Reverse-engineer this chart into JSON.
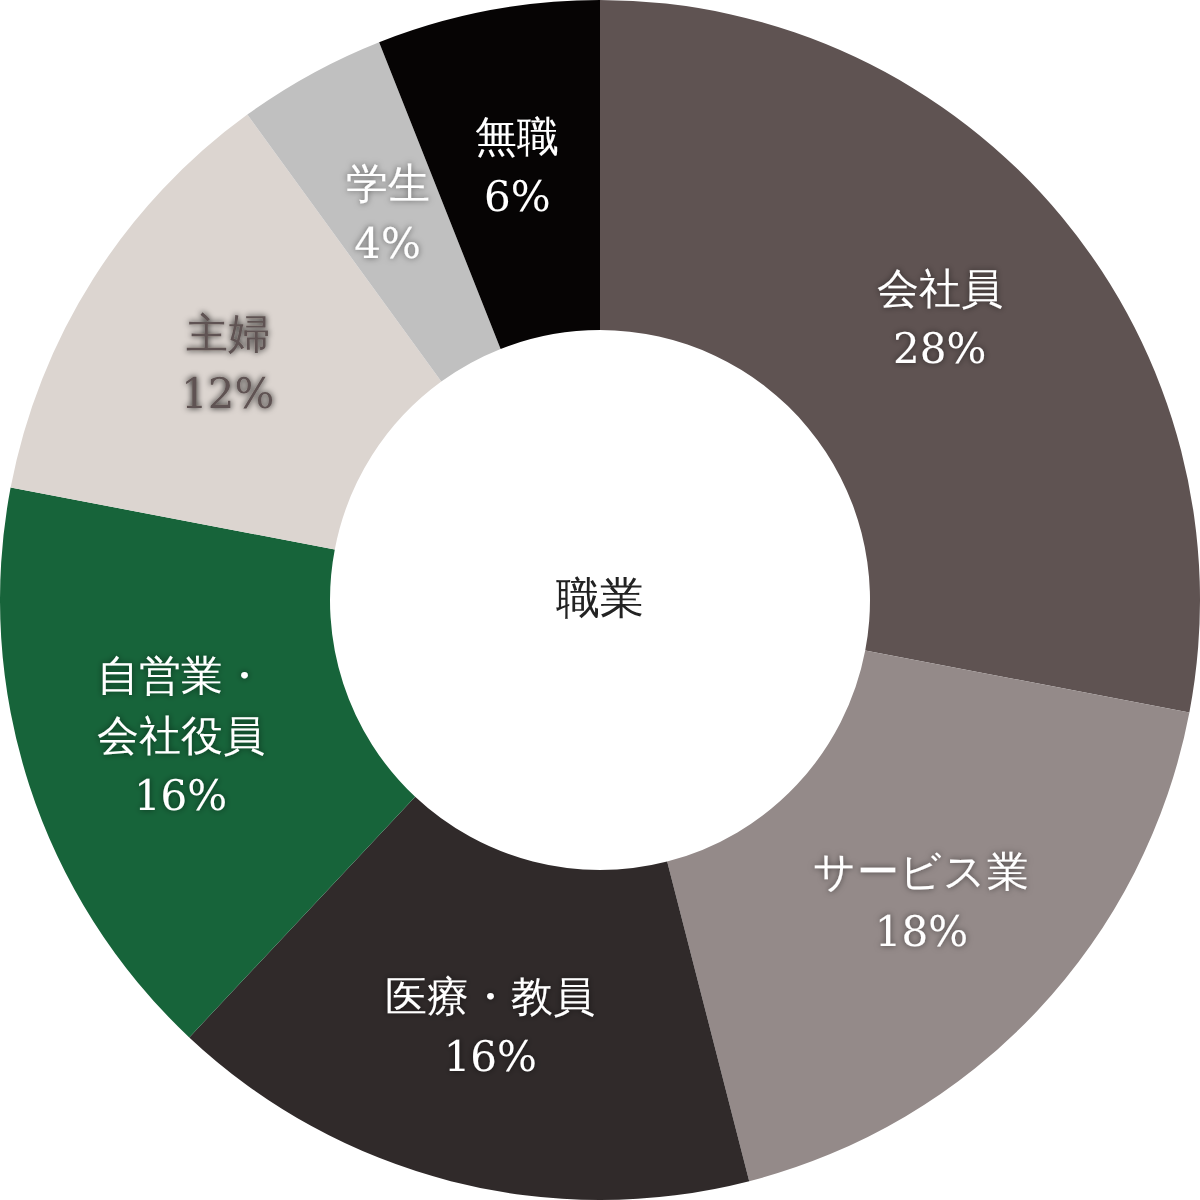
{
  "chart_data": {
    "type": "donut",
    "title": "職業",
    "categories": [
      "会社員",
      "サービス業",
      "医療・教員",
      "自営業・会社役員",
      "主婦",
      "学生",
      "無職"
    ],
    "values": [
      28,
      18,
      16,
      16,
      12,
      4,
      6
    ],
    "value_labels": [
      "28%",
      "18%",
      "16%",
      "16%",
      "12%",
      "4%",
      "6%"
    ],
    "colors": [
      "#5f5352",
      "#948a89",
      "#302a2a",
      "#17643a",
      "#dcd5d0",
      "#c0c0c0",
      "#060404"
    ],
    "legend": false
  }
}
